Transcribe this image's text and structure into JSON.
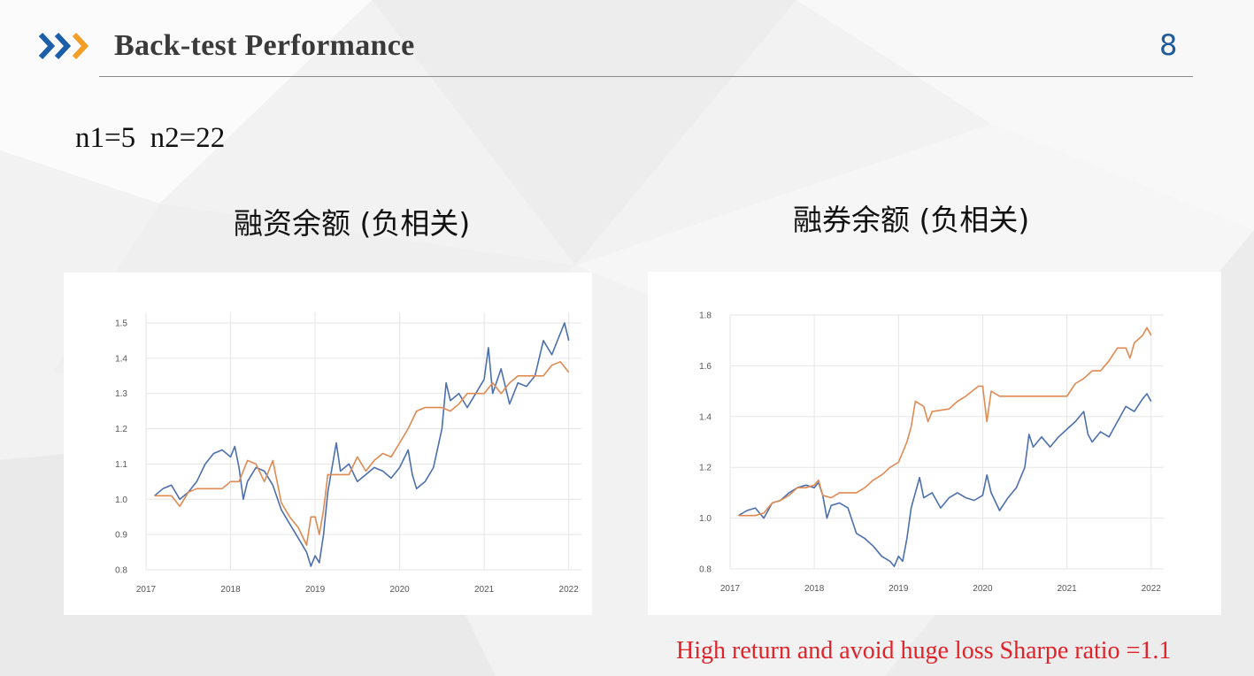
{
  "slide": {
    "title": "Back-test Performance",
    "page_number": "8",
    "params": "n1=5  n2=22",
    "conclusion": "High return and avoid huge loss Sharpe ratio =1.1"
  },
  "colors": {
    "title": "#3a3a3a",
    "page_number": "#1f5a99",
    "conclusion": "#e0232a",
    "series_blue": "#4c6fae",
    "series_orange": "#df8a52",
    "arrow_blue": "#1a5fa8",
    "arrow_orange": "#f39c26"
  },
  "chart_data": [
    {
      "type": "line",
      "title": "融资余额 (负相关)",
      "xlim": [
        2017.0,
        2022.15
      ],
      "ylim": [
        0.8,
        1.53
      ],
      "xticks": [
        2017,
        2018,
        2019,
        2020,
        2021,
        2022
      ],
      "xtick_labels": [
        "2017",
        "2018",
        "2019",
        "2020",
        "2021",
        "2022"
      ],
      "yticks": [
        0.8,
        0.9,
        1.0,
        1.1,
        1.2,
        1.3,
        1.4,
        1.5
      ],
      "ytick_labels": [
        "0.8",
        "0.9",
        "1.0",
        "1.1",
        "1.2",
        "1.3",
        "1.4",
        "1.5"
      ],
      "grid": true,
      "series": [
        {
          "color": "#4c6fae",
          "points": [
            [
              2017.1,
              1.01
            ],
            [
              2017.2,
              1.03
            ],
            [
              2017.3,
              1.04
            ],
            [
              2017.4,
              1.0
            ],
            [
              2017.5,
              1.02
            ],
            [
              2017.6,
              1.05
            ],
            [
              2017.7,
              1.1
            ],
            [
              2017.8,
              1.13
            ],
            [
              2017.9,
              1.14
            ],
            [
              2018.0,
              1.12
            ],
            [
              2018.05,
              1.15
            ],
            [
              2018.1,
              1.09
            ],
            [
              2018.15,
              1.0
            ],
            [
              2018.2,
              1.05
            ],
            [
              2018.3,
              1.09
            ],
            [
              2018.4,
              1.08
            ],
            [
              2018.5,
              1.04
            ],
            [
              2018.6,
              0.97
            ],
            [
              2018.7,
              0.93
            ],
            [
              2018.8,
              0.89
            ],
            [
              2018.9,
              0.85
            ],
            [
              2018.95,
              0.81
            ],
            [
              2019.0,
              0.84
            ],
            [
              2019.05,
              0.82
            ],
            [
              2019.1,
              0.9
            ],
            [
              2019.15,
              1.02
            ],
            [
              2019.25,
              1.16
            ],
            [
              2019.3,
              1.08
            ],
            [
              2019.4,
              1.1
            ],
            [
              2019.5,
              1.05
            ],
            [
              2019.6,
              1.07
            ],
            [
              2019.7,
              1.09
            ],
            [
              2019.8,
              1.08
            ],
            [
              2019.9,
              1.06
            ],
            [
              2020.0,
              1.09
            ],
            [
              2020.1,
              1.14
            ],
            [
              2020.15,
              1.07
            ],
            [
              2020.2,
              1.03
            ],
            [
              2020.3,
              1.05
            ],
            [
              2020.4,
              1.09
            ],
            [
              2020.5,
              1.2
            ],
            [
              2020.55,
              1.33
            ],
            [
              2020.6,
              1.28
            ],
            [
              2020.7,
              1.3
            ],
            [
              2020.8,
              1.26
            ],
            [
              2020.9,
              1.3
            ],
            [
              2021.0,
              1.34
            ],
            [
              2021.05,
              1.43
            ],
            [
              2021.1,
              1.3
            ],
            [
              2021.2,
              1.37
            ],
            [
              2021.3,
              1.27
            ],
            [
              2021.4,
              1.33
            ],
            [
              2021.5,
              1.32
            ],
            [
              2021.6,
              1.35
            ],
            [
              2021.7,
              1.45
            ],
            [
              2021.8,
              1.41
            ],
            [
              2021.9,
              1.47
            ],
            [
              2021.95,
              1.5
            ],
            [
              2022.0,
              1.45
            ]
          ]
        },
        {
          "color": "#df8a52",
          "points": [
            [
              2017.1,
              1.01
            ],
            [
              2017.3,
              1.01
            ],
            [
              2017.4,
              0.98
            ],
            [
              2017.5,
              1.02
            ],
            [
              2017.6,
              1.03
            ],
            [
              2017.9,
              1.03
            ],
            [
              2018.0,
              1.05
            ],
            [
              2018.1,
              1.05
            ],
            [
              2018.2,
              1.11
            ],
            [
              2018.3,
              1.1
            ],
            [
              2018.4,
              1.05
            ],
            [
              2018.5,
              1.11
            ],
            [
              2018.6,
              0.99
            ],
            [
              2018.7,
              0.95
            ],
            [
              2018.8,
              0.92
            ],
            [
              2018.9,
              0.87
            ],
            [
              2018.95,
              0.95
            ],
            [
              2019.0,
              0.95
            ],
            [
              2019.05,
              0.9
            ],
            [
              2019.1,
              0.97
            ],
            [
              2019.15,
              1.07
            ],
            [
              2019.3,
              1.07
            ],
            [
              2019.4,
              1.07
            ],
            [
              2019.5,
              1.12
            ],
            [
              2019.6,
              1.08
            ],
            [
              2019.7,
              1.11
            ],
            [
              2019.8,
              1.13
            ],
            [
              2019.9,
              1.12
            ],
            [
              2020.0,
              1.16
            ],
            [
              2020.1,
              1.2
            ],
            [
              2020.2,
              1.25
            ],
            [
              2020.3,
              1.26
            ],
            [
              2020.5,
              1.26
            ],
            [
              2020.6,
              1.25
            ],
            [
              2020.7,
              1.27
            ],
            [
              2020.8,
              1.3
            ],
            [
              2021.0,
              1.3
            ],
            [
              2021.1,
              1.33
            ],
            [
              2021.2,
              1.3
            ],
            [
              2021.3,
              1.33
            ],
            [
              2021.4,
              1.35
            ],
            [
              2021.7,
              1.35
            ],
            [
              2021.8,
              1.38
            ],
            [
              2021.9,
              1.39
            ],
            [
              2022.0,
              1.36
            ]
          ]
        }
      ]
    },
    {
      "type": "line",
      "title": "融券余额 (负相关)",
      "xlim": [
        2017.0,
        2022.15
      ],
      "ylim": [
        0.8,
        1.8
      ],
      "xticks": [
        2017,
        2018,
        2019,
        2020,
        2021,
        2022
      ],
      "xtick_labels": [
        "2017",
        "2018",
        "2019",
        "2020",
        "2021",
        "2022"
      ],
      "yticks": [
        0.8,
        1.0,
        1.2,
        1.4,
        1.6,
        1.8
      ],
      "ytick_labels": [
        "0.8",
        "1.0",
        "1.2",
        "1.4",
        "1.6",
        "1.8"
      ],
      "grid": true,
      "series": [
        {
          "color": "#4c6fae",
          "points": [
            [
              2017.1,
              1.01
            ],
            [
              2017.2,
              1.03
            ],
            [
              2017.3,
              1.04
            ],
            [
              2017.4,
              1.0
            ],
            [
              2017.5,
              1.06
            ],
            [
              2017.6,
              1.07
            ],
            [
              2017.7,
              1.1
            ],
            [
              2017.8,
              1.12
            ],
            [
              2017.9,
              1.13
            ],
            [
              2018.0,
              1.12
            ],
            [
              2018.05,
              1.14
            ],
            [
              2018.1,
              1.09
            ],
            [
              2018.15,
              1.0
            ],
            [
              2018.2,
              1.05
            ],
            [
              2018.3,
              1.06
            ],
            [
              2018.4,
              1.04
            ],
            [
              2018.5,
              0.94
            ],
            [
              2018.6,
              0.92
            ],
            [
              2018.7,
              0.89
            ],
            [
              2018.8,
              0.85
            ],
            [
              2018.9,
              0.83
            ],
            [
              2018.95,
              0.81
            ],
            [
              2019.0,
              0.85
            ],
            [
              2019.05,
              0.83
            ],
            [
              2019.1,
              0.92
            ],
            [
              2019.15,
              1.04
            ],
            [
              2019.25,
              1.16
            ],
            [
              2019.3,
              1.08
            ],
            [
              2019.4,
              1.1
            ],
            [
              2019.5,
              1.04
            ],
            [
              2019.6,
              1.08
            ],
            [
              2019.7,
              1.1
            ],
            [
              2019.8,
              1.08
            ],
            [
              2019.9,
              1.07
            ],
            [
              2020.0,
              1.09
            ],
            [
              2020.05,
              1.17
            ],
            [
              2020.1,
              1.1
            ],
            [
              2020.2,
              1.03
            ],
            [
              2020.3,
              1.08
            ],
            [
              2020.4,
              1.12
            ],
            [
              2020.5,
              1.2
            ],
            [
              2020.55,
              1.33
            ],
            [
              2020.6,
              1.28
            ],
            [
              2020.7,
              1.32
            ],
            [
              2020.8,
              1.28
            ],
            [
              2020.9,
              1.32
            ],
            [
              2021.0,
              1.35
            ],
            [
              2021.1,
              1.38
            ],
            [
              2021.2,
              1.42
            ],
            [
              2021.25,
              1.33
            ],
            [
              2021.3,
              1.3
            ],
            [
              2021.4,
              1.34
            ],
            [
              2021.5,
              1.32
            ],
            [
              2021.6,
              1.38
            ],
            [
              2021.7,
              1.44
            ],
            [
              2021.8,
              1.42
            ],
            [
              2021.9,
              1.47
            ],
            [
              2021.95,
              1.49
            ],
            [
              2022.0,
              1.46
            ]
          ]
        },
        {
          "color": "#df8a52",
          "points": [
            [
              2017.1,
              1.01
            ],
            [
              2017.3,
              1.01
            ],
            [
              2017.4,
              1.02
            ],
            [
              2017.5,
              1.06
            ],
            [
              2017.6,
              1.07
            ],
            [
              2017.7,
              1.09
            ],
            [
              2017.8,
              1.12
            ],
            [
              2017.9,
              1.12
            ],
            [
              2018.0,
              1.13
            ],
            [
              2018.05,
              1.15
            ],
            [
              2018.1,
              1.09
            ],
            [
              2018.2,
              1.08
            ],
            [
              2018.3,
              1.1
            ],
            [
              2018.5,
              1.1
            ],
            [
              2018.6,
              1.12
            ],
            [
              2018.7,
              1.15
            ],
            [
              2018.8,
              1.17
            ],
            [
              2018.9,
              1.2
            ],
            [
              2019.0,
              1.22
            ],
            [
              2019.1,
              1.3
            ],
            [
              2019.15,
              1.36
            ],
            [
              2019.2,
              1.46
            ],
            [
              2019.3,
              1.44
            ],
            [
              2019.35,
              1.38
            ],
            [
              2019.4,
              1.42
            ],
            [
              2019.6,
              1.43
            ],
            [
              2019.7,
              1.46
            ],
            [
              2019.8,
              1.48
            ],
            [
              2019.95,
              1.52
            ],
            [
              2020.0,
              1.52
            ],
            [
              2020.05,
              1.38
            ],
            [
              2020.1,
              1.5
            ],
            [
              2020.2,
              1.48
            ],
            [
              2020.3,
              1.48
            ],
            [
              2021.0,
              1.48
            ],
            [
              2021.1,
              1.53
            ],
            [
              2021.2,
              1.55
            ],
            [
              2021.3,
              1.58
            ],
            [
              2021.4,
              1.58
            ],
            [
              2021.5,
              1.62
            ],
            [
              2021.6,
              1.67
            ],
            [
              2021.7,
              1.67
            ],
            [
              2021.75,
              1.63
            ],
            [
              2021.8,
              1.69
            ],
            [
              2021.9,
              1.72
            ],
            [
              2021.95,
              1.75
            ],
            [
              2022.0,
              1.72
            ]
          ]
        }
      ]
    }
  ]
}
